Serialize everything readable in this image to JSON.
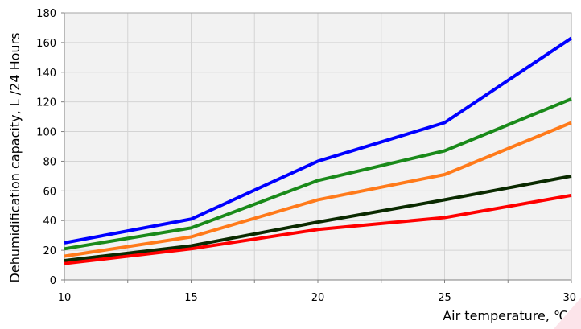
{
  "chart_data": {
    "type": "line",
    "title": "",
    "xlabel": "Air temperature, ℃",
    "ylabel": "Dehumidification capacity, L /24 Hours",
    "x": [
      10,
      15,
      20,
      25,
      30
    ],
    "xlim": [
      10,
      30
    ],
    "ylim": [
      0,
      180
    ],
    "x_ticks": [
      "10",
      "15",
      "20",
      "25",
      "30"
    ],
    "y_ticks": [
      "0",
      "20",
      "40",
      "60",
      "80",
      "100",
      "120",
      "140",
      "160",
      "180"
    ],
    "grid": true,
    "plot_background": "#f2f2f2",
    "series": [
      {
        "color": "#0000ff",
        "values": [
          25,
          41,
          80,
          106,
          163
        ]
      },
      {
        "color": "#1a8a1a",
        "values": [
          21,
          35,
          67,
          87,
          122
        ]
      },
      {
        "color": "#ff7a1a",
        "values": [
          16,
          29,
          54,
          71,
          106
        ]
      },
      {
        "color": "#0a2a00",
        "values": [
          13,
          23,
          39,
          54,
          70
        ]
      },
      {
        "color": "#ff0000",
        "values": [
          11,
          21,
          34,
          42,
          57
        ]
      }
    ]
  }
}
